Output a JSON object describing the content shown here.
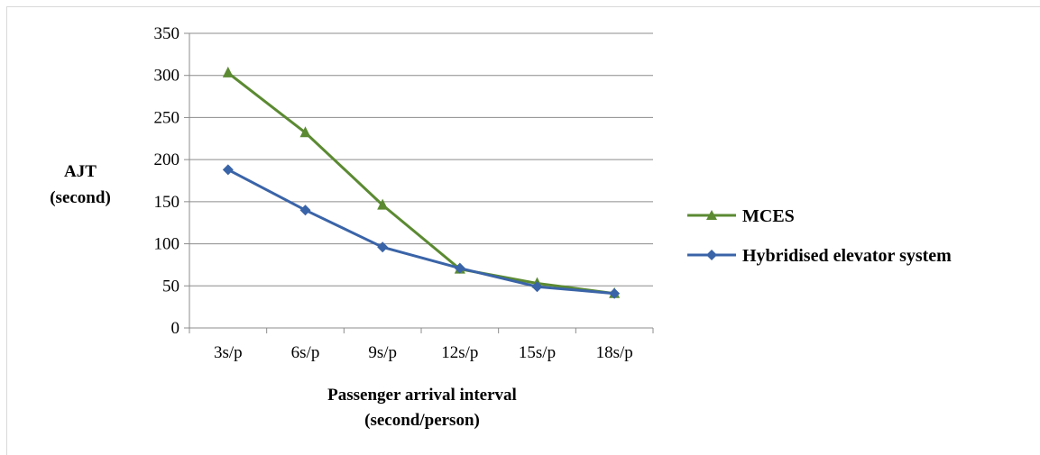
{
  "chart_data": {
    "type": "line",
    "categories": [
      "3s/p",
      "6s/p",
      "9s/p",
      "12s/p",
      "15s/p",
      "18s/p"
    ],
    "series": [
      {
        "name": "MCES",
        "values": [
          303,
          232,
          146,
          70,
          53,
          41
        ],
        "color": "#5b8a32",
        "marker": "triangle"
      },
      {
        "name": "Hybridised elevator system",
        "values": [
          188,
          140,
          96,
          71,
          49,
          41
        ],
        "color": "#3a64a8",
        "marker": "diamond"
      }
    ],
    "xlabel_lines": [
      "Passenger arrival interval",
      "(second/person)"
    ],
    "ylabel_lines": [
      "AJT",
      "(second)"
    ],
    "ylim": [
      0,
      350
    ],
    "yticks": [
      0,
      50,
      100,
      150,
      200,
      250,
      300,
      350
    ],
    "grid": true,
    "legend": "right"
  }
}
